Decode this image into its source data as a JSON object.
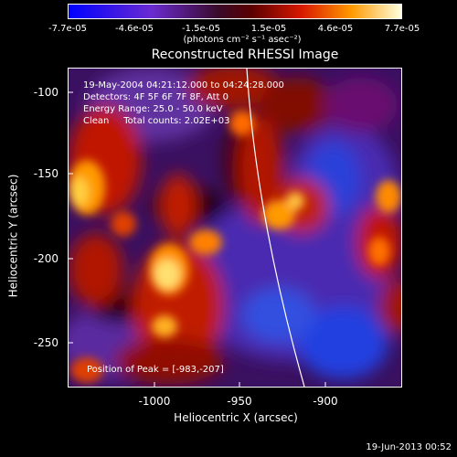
{
  "colorbar": {
    "ticks": [
      "-7.7e-05",
      "-4.6e-05",
      "-1.5e-05",
      "1.5e-05",
      "4.6e-05",
      "7.7e-05"
    ],
    "unit": "(photons cm⁻² s⁻¹ asec⁻²)"
  },
  "title": "Reconstructed RHESSI Image",
  "info": {
    "line1": "19-May-2004 04:21:12.000 to 04:24:28.000",
    "line2": "Detectors: 4F 5F 6F 7F 8F, Att 0",
    "line3": "Energy Range: 25.0 - 50.0 keV",
    "line4": "Clean     Total counts: 2.02E+03",
    "peak": "Position of Peak = [-983,-207]"
  },
  "axes": {
    "xlabel": "Heliocentric X (arcsec)",
    "ylabel": "Heliocentric Y (arcsec)",
    "xticks": [
      "-1000",
      "-950",
      "-900"
    ],
    "yticks": [
      "-100",
      "-150",
      "-200",
      "-250"
    ]
  },
  "timestamp": "19-Jun-2013 00:52",
  "colors": {
    "background": "#000000",
    "foreground": "#ffffff"
  }
}
